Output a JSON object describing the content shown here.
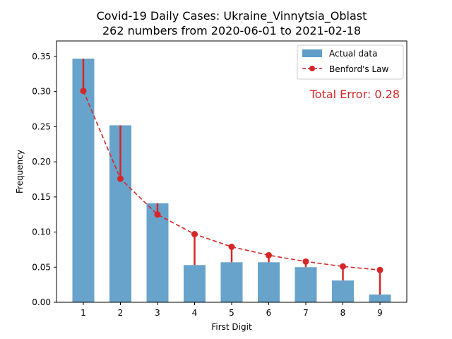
{
  "chart_data": {
    "type": "bar",
    "title_line1": "Covid-19 Daily Cases: Ukraine_Vinnytsia_Oblast",
    "title_line2": "262 numbers from 2020-06-01 to 2021-02-18",
    "xlabel": "First Digit",
    "ylabel": "Frequency",
    "categories": [
      "1",
      "2",
      "3",
      "4",
      "5",
      "6",
      "7",
      "8",
      "9"
    ],
    "series": [
      {
        "name": "Actual data",
        "type": "bar",
        "color": "#5f9ec8",
        "values": [
          0.347,
          0.252,
          0.141,
          0.053,
          0.057,
          0.057,
          0.05,
          0.031,
          0.011
        ]
      },
      {
        "name": "Benford's Law",
        "type": "line",
        "color": "#d62728",
        "values": [
          0.301,
          0.176,
          0.125,
          0.097,
          0.079,
          0.067,
          0.058,
          0.051,
          0.046
        ]
      }
    ],
    "ylim": [
      0,
      0.35
    ],
    "yticks": [
      "0.00",
      "0.05",
      "0.10",
      "0.15",
      "0.20",
      "0.25",
      "0.30",
      "0.35"
    ],
    "ytick_values": [
      0,
      0.05,
      0.1,
      0.15,
      0.2,
      0.25,
      0.3,
      0.35
    ],
    "annotation": "Total Error: 0.28",
    "annotation_color": "#d62728",
    "legend_position": "top-right",
    "grid": false
  }
}
